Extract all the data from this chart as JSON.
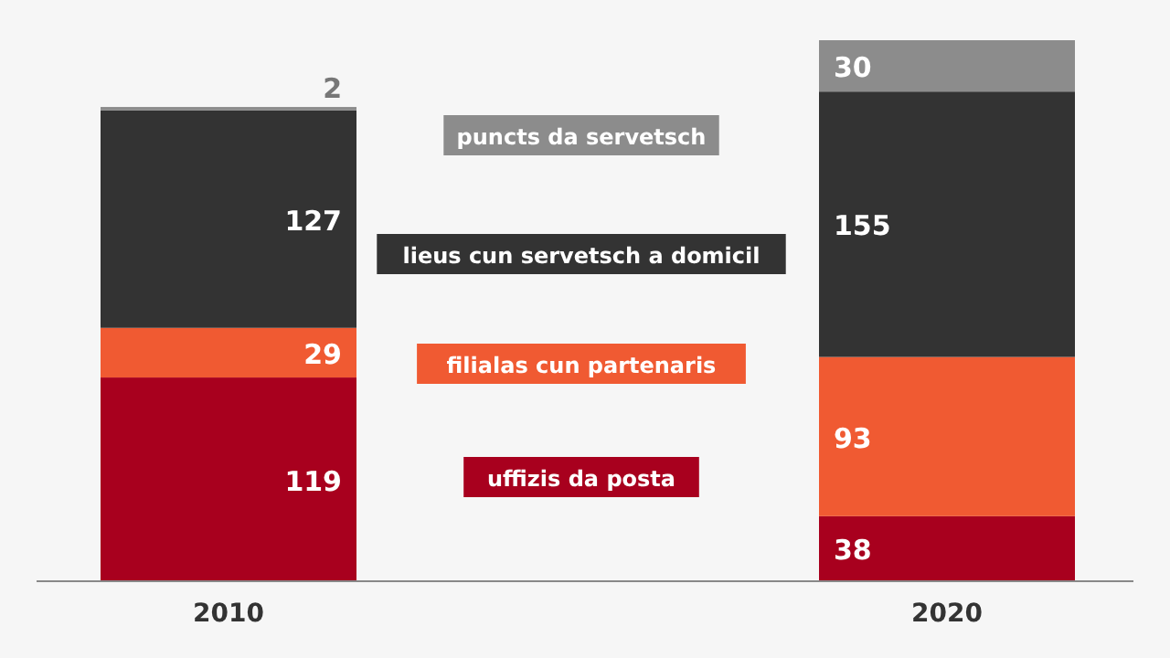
{
  "chart_data": {
    "type": "bar",
    "stacked": true,
    "categories": [
      "2010",
      "2020"
    ],
    "series": [
      {
        "name": "uffizis da posta",
        "color": "#a8001e",
        "values": [
          119,
          38
        ]
      },
      {
        "name": "filialas cun partenaris",
        "color": "#f05a32",
        "values": [
          29,
          93
        ]
      },
      {
        "name": "lieus cun servetsch a domicil",
        "color": "#333333",
        "values": [
          127,
          155
        ]
      },
      {
        "name": "puncts da servetsch",
        "color": "#8c8c8c",
        "values": [
          2,
          30
        ]
      }
    ],
    "data_labels": true,
    "legend": "center"
  }
}
